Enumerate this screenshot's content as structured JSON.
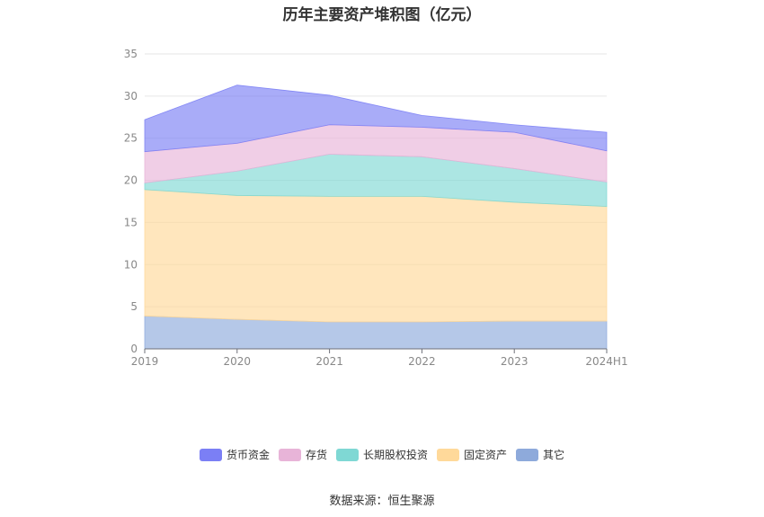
{
  "chart_data": {
    "type": "area",
    "stacked": true,
    "title": "历年主要资产堆积图（亿元）",
    "categories": [
      "2019",
      "2020",
      "2021",
      "2022",
      "2023",
      "2024H1"
    ],
    "ylim": [
      0,
      35
    ],
    "yticks": [
      0,
      5,
      10,
      15,
      20,
      25,
      30,
      35
    ],
    "grid": true,
    "legend_position": "bottom",
    "series": [
      {
        "name": "其它",
        "color": "#8eaadb",
        "values": [
          3.9,
          3.5,
          3.2,
          3.2,
          3.3,
          3.3
        ]
      },
      {
        "name": "固定资产",
        "color": "#ffd99a",
        "values": [
          15.0,
          14.7,
          14.9,
          14.9,
          14.1,
          13.6
        ]
      },
      {
        "name": "长期股权投资",
        "color": "#7fd8d4",
        "values": [
          0.8,
          2.9,
          5.0,
          4.7,
          4.0,
          2.9
        ]
      },
      {
        "name": "存货",
        "color": "#e8b4d8",
        "values": [
          3.7,
          3.3,
          3.5,
          3.5,
          4.3,
          3.7
        ]
      },
      {
        "name": "货币资金",
        "color": "#7b7ff5",
        "values": [
          3.8,
          6.9,
          3.5,
          1.4,
          0.9,
          2.2
        ]
      }
    ],
    "source": "数据来源：恒生聚源"
  }
}
